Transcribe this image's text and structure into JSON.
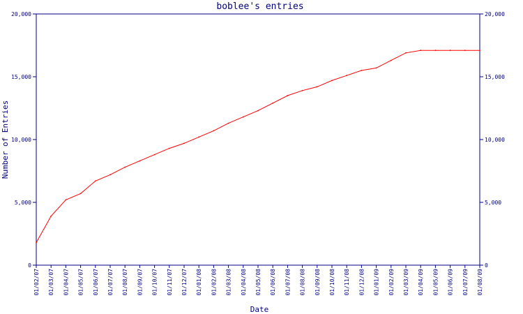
{
  "colors": {
    "axis": "#000080",
    "series": "#ff0000",
    "background": "#ffffff"
  },
  "chart_data": {
    "type": "line",
    "title": "boblee's entries",
    "xlabel": "Date",
    "ylabel": "Number of Entries",
    "ylim": [
      0,
      20000
    ],
    "y_ticks": [
      "0",
      "5,000",
      "10,000",
      "15,000",
      "20,000"
    ],
    "y_tick_values": [
      0,
      5000,
      10000,
      15000,
      20000
    ],
    "y_axis_right": true,
    "grid": false,
    "categories": [
      "01/02/07",
      "01/03/07",
      "01/04/07",
      "01/05/07",
      "01/06/07",
      "01/07/07",
      "01/08/07",
      "01/09/07",
      "01/10/07",
      "01/11/07",
      "01/12/07",
      "01/01/08",
      "01/02/08",
      "01/03/08",
      "01/04/08",
      "01/05/08",
      "01/06/08",
      "01/07/08",
      "01/08/08",
      "01/09/08",
      "01/10/08",
      "01/11/08",
      "01/12/08",
      "01/01/09",
      "01/02/09",
      "01/03/09",
      "01/04/09",
      "01/05/09",
      "01/06/09",
      "01/07/09",
      "01/08/09"
    ],
    "series": [
      {
        "values": [
          1800,
          3900,
          5200,
          5700,
          6700,
          7200,
          7800,
          8300,
          8800,
          9300,
          9700,
          10200,
          10700,
          11300,
          11800,
          12300,
          12900,
          13500,
          13900,
          14200,
          14700,
          15100,
          15500,
          15700,
          16300,
          16900,
          17100,
          17100,
          17100,
          17100,
          17100
        ]
      }
    ]
  }
}
